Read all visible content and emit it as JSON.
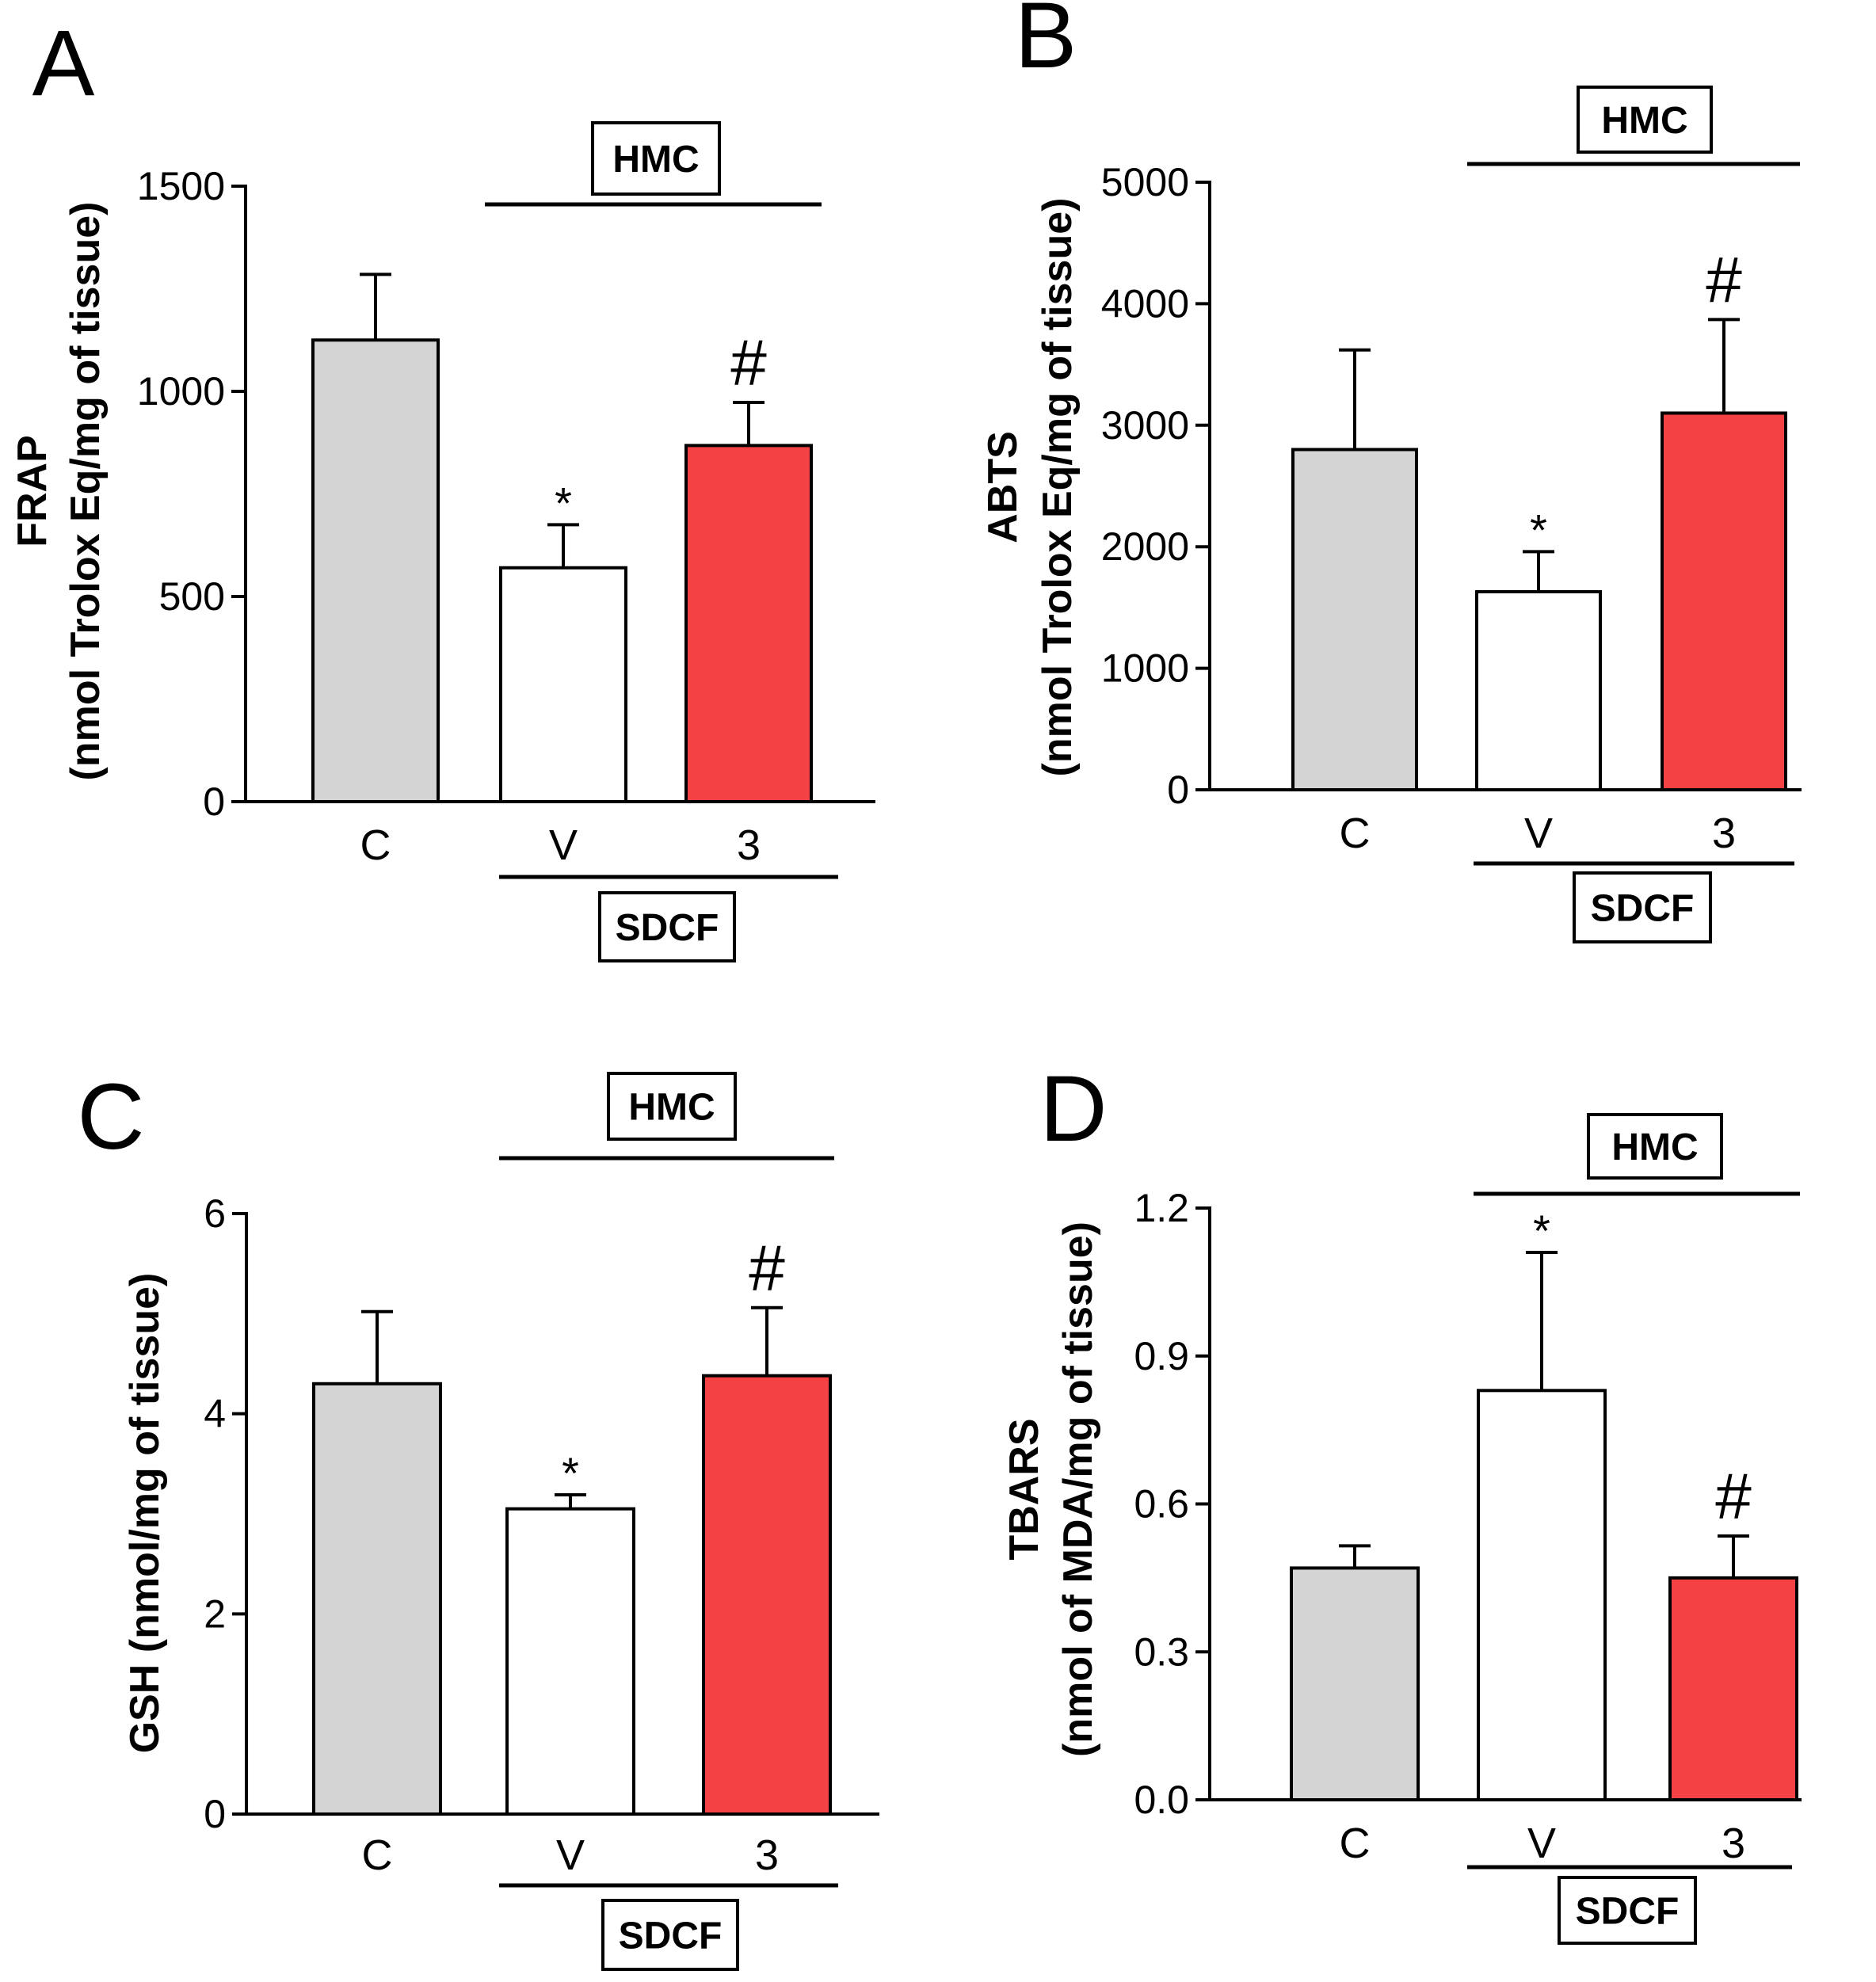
{
  "colors": {
    "control": "#d4d4d4",
    "vehicle": "#ffffff",
    "treated": "#f44144",
    "outline": "#000000"
  },
  "chart_data": [
    {
      "type": "bar",
      "panel": "A",
      "categories": [
        "C",
        "V",
        "3"
      ],
      "values": [
        1125,
        570,
        868
      ],
      "errors": [
        160,
        105,
        105
      ],
      "annotations": [
        "",
        "*",
        "#"
      ],
      "ylabel_line1": "FRAP",
      "ylabel_line2": "(nmol Trolox Eq/mg of tissue)",
      "ylim": [
        0,
        1500
      ],
      "yticks": [
        "0",
        "500",
        "1000",
        "1500"
      ],
      "ytick_values": [
        0,
        500,
        1000,
        1500
      ],
      "top_group_label": "HMC",
      "bottom_group_label": "SDCF"
    },
    {
      "type": "bar",
      "panel": "B",
      "categories": [
        "C",
        "V",
        "3"
      ],
      "values": [
        2800,
        1630,
        3100
      ],
      "errors": [
        820,
        330,
        770
      ],
      "annotations": [
        "",
        "*",
        "#"
      ],
      "ylabel_line1": "ABTS",
      "ylabel_line2": "(nmol Trolox Eq/mg of tissue)",
      "ylim": [
        0,
        5000
      ],
      "yticks": [
        "0",
        "1000",
        "2000",
        "3000",
        "4000",
        "5000"
      ],
      "ytick_values": [
        0,
        1000,
        2000,
        3000,
        4000,
        5000
      ],
      "top_group_label": "HMC",
      "bottom_group_label": "SDCF"
    },
    {
      "type": "bar",
      "panel": "C",
      "categories": [
        "C",
        "V",
        "3"
      ],
      "values": [
        4.3,
        3.05,
        4.38
      ],
      "errors": [
        0.72,
        0.14,
        0.68
      ],
      "annotations": [
        "",
        "*",
        "#"
      ],
      "ylabel_line1": "GSH (nmol/mg of tissue)",
      "ylabel_line2": "",
      "ylim": [
        0,
        6
      ],
      "yticks": [
        "0",
        "2",
        "4",
        "6"
      ],
      "ytick_values": [
        0,
        2,
        4,
        6
      ],
      "top_group_label": "HMC",
      "bottom_group_label": "SDCF"
    },
    {
      "type": "bar",
      "panel": "D",
      "categories": [
        "C",
        "V",
        "3"
      ],
      "values": [
        0.47,
        0.83,
        0.45
      ],
      "errors": [
        0.045,
        0.28,
        0.085
      ],
      "annotations": [
        "",
        "*",
        "#"
      ],
      "ylabel_line1": "TBARS",
      "ylabel_line2": "(nmol of MDA/mg of tissue)",
      "ylim": [
        0,
        1.2
      ],
      "yticks": [
        "0.0",
        "0.3",
        "0.6",
        "0.9",
        "1.2"
      ],
      "ytick_values": [
        0,
        0.3,
        0.6,
        0.9,
        1.2
      ],
      "top_group_label": "HMC",
      "bottom_group_label": "SDCF"
    }
  ]
}
